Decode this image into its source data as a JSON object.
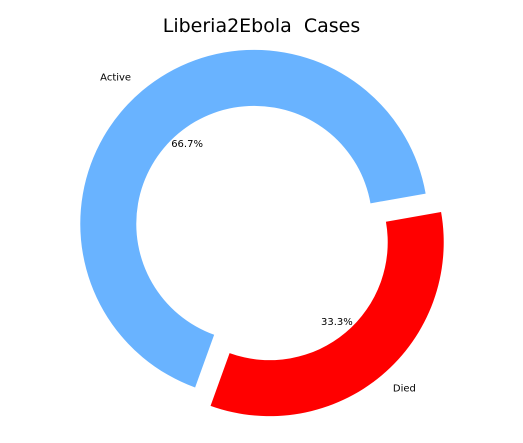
{
  "chart_data": {
    "type": "pie",
    "style": "donut",
    "title": "Liberia2Ebola  Cases",
    "categories": [
      "Active",
      "Died"
    ],
    "values": [
      66.7,
      33.3
    ],
    "value_labels": [
      "66.7%",
      "33.3%"
    ],
    "colors": [
      "#69b3ff",
      "#ff0000"
    ],
    "exploded": true
  }
}
